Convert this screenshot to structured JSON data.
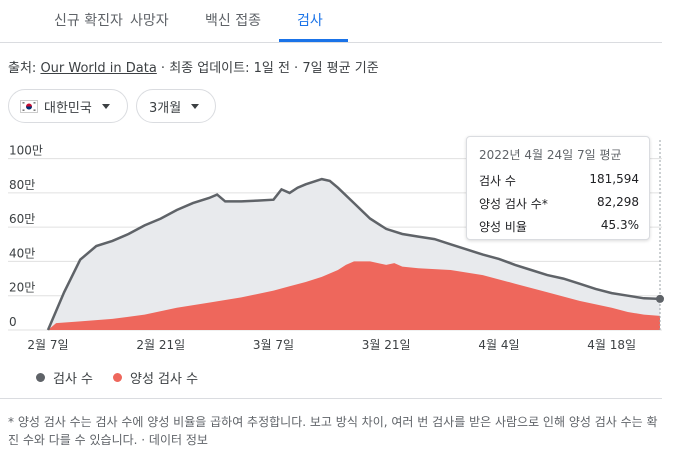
{
  "tabs": [
    {
      "label": "신규 확진자"
    },
    {
      "label": "사망자"
    },
    {
      "label": "백신 접종"
    },
    {
      "label": "검사"
    }
  ],
  "source": {
    "prefix": "출처: ",
    "link": "Our World in Data",
    "suffix": " · 최종 업데이트: 1일 전 · 7일 평균 기준"
  },
  "filters": {
    "country": "대한민국",
    "range": "3개월"
  },
  "tooltip": {
    "title": "2022년 4월 24일 7일 평균",
    "rows": [
      {
        "label": "검사 수",
        "value": "181,594"
      },
      {
        "label": "양성 검사 수*",
        "value": "82,298"
      },
      {
        "label": "양성 비율",
        "value": "45.3%"
      }
    ]
  },
  "legend": {
    "tests": "검사 수",
    "positive": "양성 검사 수"
  },
  "footnote": "* 양성 검사 수는 검사 수에 양성 비율을 곱하여 추정합니다. 보고 방식 차이, 여러 번 검사를 받은 사람으로 인해 양성 검사 수는 확진 수와 다를 수 있습니다. · 데이터 정보",
  "colors": {
    "tests": "#5f6368",
    "tests_fill": "#e8eaed",
    "positive": "#ee675c",
    "accent": "#1a73e8"
  },
  "chart_data": {
    "type": "area",
    "ylim": [
      0,
      1050000
    ],
    "y_ticks": [
      0,
      200000,
      400000,
      600000,
      800000,
      1000000
    ],
    "y_tick_labels": [
      "0",
      "20만",
      "40만",
      "60만",
      "80만",
      "100만"
    ],
    "x_tick_labels": [
      "2월 7일",
      "2월 21일",
      "3월 7일",
      "3월 21일",
      "4월 4일",
      "4월 18일"
    ],
    "x_tick_days": [
      0,
      14,
      28,
      42,
      56,
      70
    ],
    "series": [
      {
        "name": "검사 수",
        "x": [
          0,
          2,
          4,
          6,
          8,
          10,
          12,
          14,
          16,
          18,
          20,
          21,
          22,
          24,
          26,
          28,
          29,
          30,
          31,
          32,
          34,
          35,
          36,
          38,
          40,
          42,
          44,
          46,
          48,
          50,
          52,
          54,
          56,
          58,
          60,
          62,
          64,
          66,
          68,
          70,
          72,
          74,
          76
        ],
        "y": [
          0,
          220000,
          410000,
          490000,
          520000,
          560000,
          610000,
          650000,
          700000,
          740000,
          770000,
          790000,
          750000,
          750000,
          755000,
          760000,
          820000,
          800000,
          830000,
          850000,
          880000,
          870000,
          830000,
          740000,
          650000,
          590000,
          560000,
          545000,
          530000,
          500000,
          470000,
          440000,
          415000,
          380000,
          350000,
          320000,
          300000,
          270000,
          240000,
          215000,
          200000,
          185000,
          181594
        ]
      },
      {
        "name": "양성 검사 수",
        "x": [
          0,
          1,
          4,
          8,
          12,
          16,
          20,
          24,
          28,
          30,
          32,
          34,
          36,
          37,
          38,
          40,
          42,
          43,
          44,
          46,
          50,
          54,
          58,
          62,
          66,
          70,
          72,
          74,
          76
        ],
        "y": [
          0,
          40000,
          50000,
          65000,
          90000,
          130000,
          160000,
          190000,
          230000,
          255000,
          280000,
          310000,
          350000,
          380000,
          400000,
          400000,
          380000,
          390000,
          370000,
          360000,
          350000,
          320000,
          270000,
          220000,
          170000,
          130000,
          105000,
          90000,
          82298
        ]
      }
    ]
  }
}
